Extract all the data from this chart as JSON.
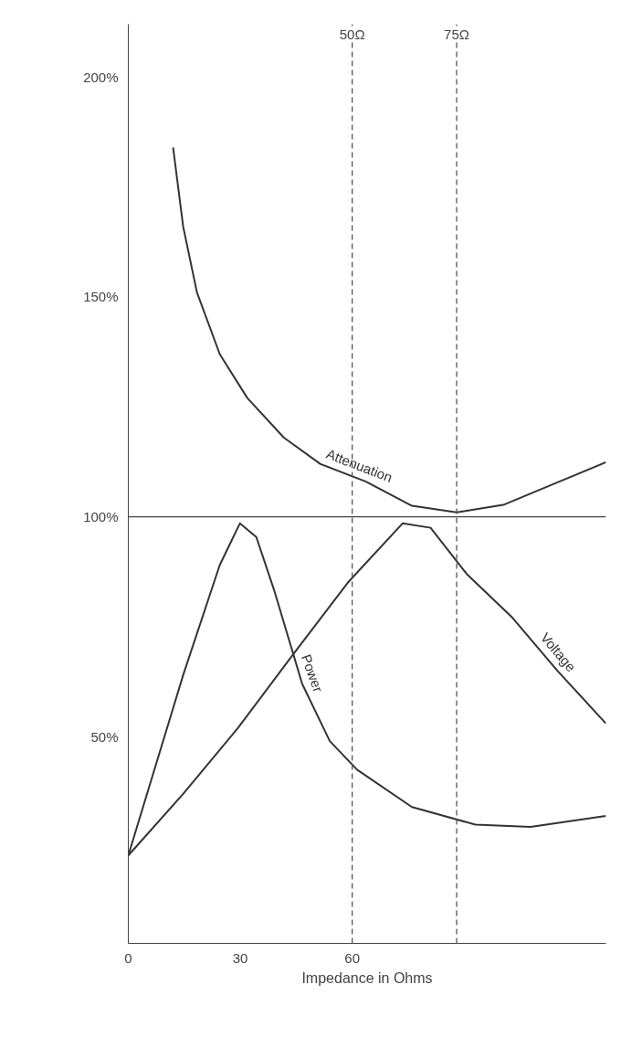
{
  "chart_data": {
    "type": "line",
    "xlabel": "Impedance in Ohms",
    "xlim": [
      0,
      128
    ],
    "ylim": [
      3,
      212
    ],
    "xticks": [
      0,
      30,
      60
    ],
    "yticks": [
      {
        "value": 50,
        "label": "50%"
      },
      {
        "value": 100,
        "label": "100%"
      },
      {
        "value": 150,
        "label": "150%"
      },
      {
        "value": 200,
        "label": "200%"
      }
    ],
    "grid": false,
    "marker": "none",
    "line_style": "solid",
    "series": [
      {
        "name": "Attenuation",
        "color": "#333333",
        "x": [
          12,
          14.7,
          18.4,
          24.5,
          31.9,
          41.7,
          51.5,
          63.7,
          76,
          88,
          100.5,
          112.7,
          128
        ],
        "values": [
          184,
          166,
          151,
          137,
          127,
          118,
          112,
          108,
          102.5,
          101,
          102.7,
          107,
          112.4
        ]
      },
      {
        "name": "Power",
        "color": "#333333",
        "x": [
          0,
          14.7,
          24.5,
          29.9,
          34.3,
          39.2,
          46.6,
          54,
          61.3,
          76,
          93,
          107.8,
          128
        ],
        "values": [
          23,
          64,
          89,
          98.5,
          95.4,
          83,
          62,
          49,
          42.5,
          34,
          30,
          29.5,
          32
        ]
      },
      {
        "name": "Voltage",
        "color": "#333333",
        "x": [
          0,
          14.7,
          29.4,
          44,
          58.8,
          73.5,
          81,
          90.7,
          103,
          115,
          128
        ],
        "values": [
          23,
          37,
          52,
          68.5,
          85,
          98.5,
          97.5,
          87,
          77,
          65,
          53
        ]
      }
    ],
    "ref_lines": [
      {
        "axis": "x",
        "value": 60,
        "label": "50Ω",
        "line_style": "dashed",
        "color": "#555555"
      },
      {
        "axis": "x",
        "value": 88,
        "label": "75Ω",
        "line_style": "dashed",
        "color": "#555555"
      },
      {
        "axis": "y",
        "value": 100,
        "line_style": "solid",
        "color": "#444444"
      }
    ]
  }
}
